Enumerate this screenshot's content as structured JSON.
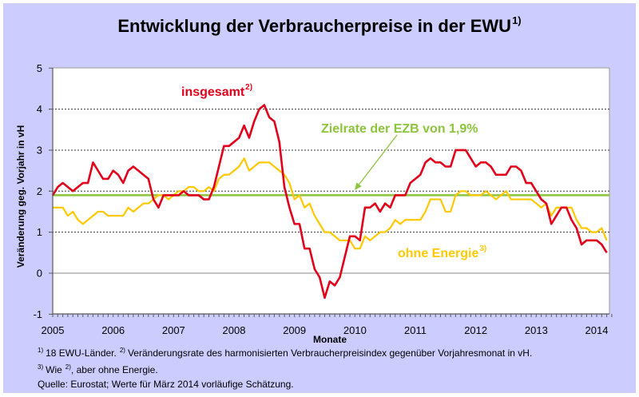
{
  "title": {
    "text": "Entwicklung der Verbraucherpreise in der EWU",
    "sup": "1)"
  },
  "chart_data": {
    "type": "line",
    "title": "Entwicklung der Verbraucherpreise in der EWU 1)",
    "xlabel": "Monate",
    "ylabel": "Veränderung geg. Vorjahr in vH",
    "ylim": [
      -1,
      5
    ],
    "yticks": [
      -1,
      0,
      1,
      2,
      3,
      4,
      5
    ],
    "ytick_labels": [
      "-1",
      "0",
      "1",
      "2",
      "3",
      "4",
      "5"
    ],
    "x_start": "2005-01",
    "x_end": "2014-03",
    "frequency": "monthly",
    "xtick_labels": [
      "2005",
      "2006",
      "2007",
      "2008",
      "2009",
      "2010",
      "2011",
      "2012",
      "2013",
      "2014"
    ],
    "grid": "horizontal dotted at 1-4, solid at 0",
    "legend": "inline labels",
    "series": [
      {
        "name": "insgesamt",
        "label": "insgesamt",
        "label_sup": "2)",
        "color": "#E2001A",
        "values": [
          1.9,
          2.1,
          2.2,
          2.1,
          2.0,
          2.1,
          2.2,
          2.2,
          2.7,
          2.5,
          2.3,
          2.3,
          2.5,
          2.4,
          2.2,
          2.5,
          2.6,
          2.5,
          2.4,
          2.3,
          1.8,
          1.6,
          1.9,
          1.9,
          1.9,
          1.9,
          2.0,
          1.9,
          1.9,
          1.9,
          1.8,
          1.8,
          2.1,
          2.6,
          3.1,
          3.1,
          3.2,
          3.3,
          3.6,
          3.3,
          3.7,
          4.0,
          4.1,
          3.8,
          3.7,
          3.2,
          2.1,
          1.6,
          1.2,
          1.2,
          0.6,
          0.6,
          0.1,
          -0.1,
          -0.6,
          -0.2,
          -0.3,
          -0.1,
          0.4,
          0.9,
          0.9,
          0.8,
          1.6,
          1.6,
          1.7,
          1.5,
          1.7,
          1.6,
          1.9,
          1.9,
          1.9,
          2.2,
          2.3,
          2.4,
          2.7,
          2.8,
          2.7,
          2.7,
          2.6,
          2.6,
          3.0,
          3.0,
          3.0,
          2.8,
          2.6,
          2.7,
          2.7,
          2.6,
          2.4,
          2.4,
          2.4,
          2.6,
          2.6,
          2.5,
          2.2,
          2.2,
          2.0,
          1.8,
          1.7,
          1.2,
          1.4,
          1.6,
          1.6,
          1.3,
          1.1,
          0.7,
          0.8,
          0.8,
          0.8,
          0.7,
          0.5
        ]
      },
      {
        "name": "ohne Energie",
        "label": "ohne Energie",
        "label_sup": "3)",
        "color": "#FFC800",
        "values": [
          1.6,
          1.6,
          1.6,
          1.4,
          1.5,
          1.3,
          1.2,
          1.3,
          1.4,
          1.5,
          1.5,
          1.4,
          1.4,
          1.4,
          1.4,
          1.6,
          1.5,
          1.6,
          1.7,
          1.7,
          1.8,
          1.9,
          1.9,
          1.8,
          1.9,
          2.0,
          2.0,
          2.1,
          2.1,
          2.0,
          2.0,
          2.1,
          2.0,
          2.3,
          2.4,
          2.4,
          2.5,
          2.6,
          2.8,
          2.5,
          2.6,
          2.7,
          2.7,
          2.7,
          2.6,
          2.5,
          2.4,
          2.2,
          1.8,
          1.9,
          1.6,
          1.7,
          1.4,
          1.2,
          1.0,
          1.0,
          0.9,
          0.8,
          0.8,
          0.8,
          0.6,
          0.6,
          0.9,
          0.8,
          0.9,
          1.0,
          1.0,
          1.1,
          1.3,
          1.2,
          1.3,
          1.3,
          1.3,
          1.3,
          1.5,
          1.8,
          1.8,
          1.8,
          1.5,
          1.5,
          1.9,
          2.0,
          2.0,
          1.9,
          1.9,
          1.9,
          2.0,
          1.9,
          1.8,
          1.9,
          2.0,
          1.8,
          1.8,
          1.8,
          1.8,
          1.8,
          1.7,
          1.6,
          1.7,
          1.4,
          1.6,
          1.6,
          1.6,
          1.6,
          1.3,
          1.1,
          1.1,
          1.0,
          1.0,
          1.1,
          0.8
        ]
      }
    ],
    "reference_line": {
      "label": "Zielrate der EZB von 1,9%",
      "value": 1.9,
      "color": "#8CC43C"
    }
  },
  "footnotes": {
    "line1": {
      "sup1": "1)",
      "text1": "18 EWU-Länder.",
      "sup2": "2)",
      "text2": "Veränderungsrate des harmonisierten Verbraucherpreisindex gegenüber Vorjahresmonat in vH."
    },
    "line2": {
      "sup1": "3)",
      "text1": "Wie",
      "sup2": "2)",
      "text2": ", aber ohne Energie."
    },
    "source": "Quelle: Eurostat; Werte für März 2014 vorläufige Schätzung."
  }
}
